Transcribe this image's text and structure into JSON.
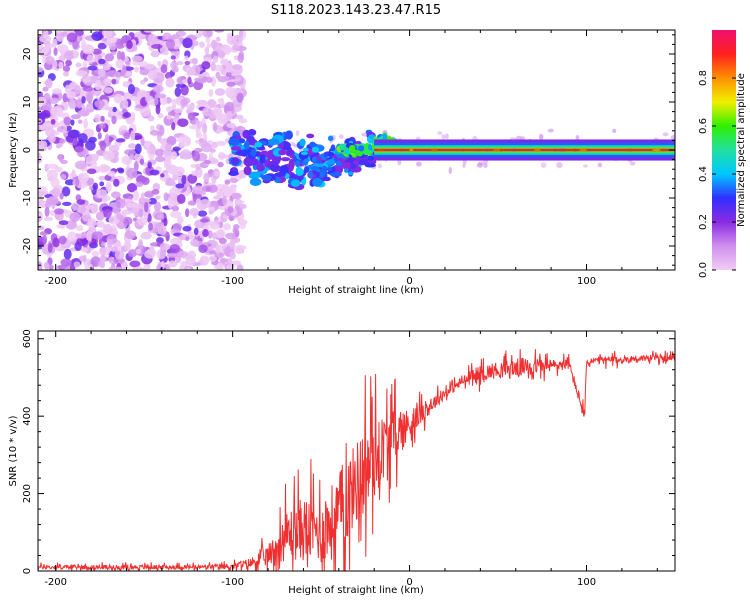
{
  "title": "S118.2023.143.23.47.R15",
  "chart_data": [
    {
      "type": "heatmap",
      "xlabel": "Height of straight line (km)",
      "ylabel": "Frequency (Hz)",
      "xlim": [
        -210,
        150
      ],
      "ylim": [
        -25,
        25
      ],
      "x_ticks": [
        -200,
        -100,
        0,
        100
      ],
      "y_ticks": [
        -20,
        -10,
        0,
        10,
        20
      ],
      "colorbar": {
        "label": "Normalized spectral amplitude",
        "range": [
          0,
          1
        ],
        "ticks": [
          0.0,
          0.2,
          0.4,
          0.6,
          0.8
        ],
        "colormap": [
          "#f0ccf5",
          "#d090ee",
          "#8a2be2",
          "#3030ff",
          "#00c8ff",
          "#20e0a0",
          "#30f000",
          "#f0f000",
          "#ff9000",
          "#ff2020",
          "#f01070"
        ]
      },
      "description_regions": [
        {
          "x_range": [
            -210,
            -100
          ],
          "pattern": "diffuse noise across full frequency range"
        },
        {
          "x_range": [
            -100,
            -20
          ],
          "pattern": "clustered blobs near 0 Hz, drifting down to about -8 Hz"
        },
        {
          "x_range": [
            -20,
            150
          ],
          "pattern": "narrow bright line at 0 Hz"
        }
      ]
    },
    {
      "type": "line",
      "xlabel": "Height of straight line (km)",
      "ylabel": "SNR (10 * v/v)",
      "xlim": [
        -210,
        150
      ],
      "ylim": [
        0,
        620
      ],
      "x_ticks": [
        -200,
        -100,
        0,
        100
      ],
      "y_ticks": [
        0,
        200,
        400,
        600
      ],
      "color": "#f03030",
      "series": [
        {
          "name": "SNR",
          "x": [
            -210,
            -180,
            -150,
            -120,
            -100,
            -90,
            -80,
            -75,
            -70,
            -60,
            -50,
            -45,
            -40,
            -35,
            -30,
            -25,
            -20,
            -15,
            -10,
            -5,
            0,
            5,
            10,
            15,
            20,
            30,
            40,
            50,
            60,
            70,
            80,
            90,
            99,
            100,
            101,
            110,
            120,
            130,
            140,
            150
          ],
          "values": [
            10,
            10,
            10,
            10,
            12,
            20,
            40,
            60,
            90,
            110,
            100,
            120,
            150,
            190,
            230,
            260,
            290,
            320,
            350,
            360,
            380,
            400,
            420,
            440,
            460,
            490,
            510,
            520,
            525,
            530,
            530,
            535,
            400,
            540,
            540,
            545,
            545,
            550,
            550,
            550
          ],
          "noise_amplitude": [
            8,
            8,
            8,
            8,
            10,
            20,
            40,
            60,
            90,
            120,
            110,
            140,
            150,
            160,
            150,
            180,
            150,
            120,
            100,
            80,
            60,
            40,
            30,
            25,
            20,
            20,
            30,
            30,
            35,
            30,
            25,
            20,
            20,
            20,
            15,
            15,
            15,
            12,
            12,
            12
          ]
        }
      ]
    }
  ]
}
